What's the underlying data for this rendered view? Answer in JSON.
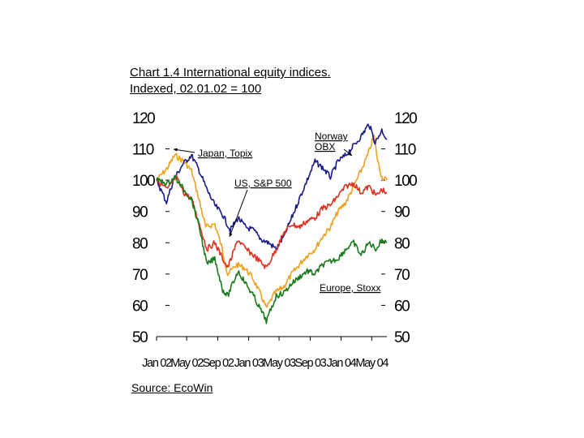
{
  "chart_data": {
    "type": "line",
    "title": "Chart 1.4 International equity indices.",
    "subtitle": "Indexed, 02.01.02 = 100",
    "ylim": [
      50,
      120
    ],
    "y_ticks": [
      "120",
      "110",
      "100",
      "90",
      "80",
      "70",
      "60",
      "50"
    ],
    "x_ticks": [
      "Jan 02",
      "May 02",
      "Sep 02",
      "Jan 03",
      "May 03",
      "Sep 03",
      "Jan 04",
      "May 04"
    ],
    "x_range": [
      "2002-01-02",
      "2004-06-30"
    ],
    "grid": false,
    "legend": "none (direct labels)",
    "annotations": [
      "Japan, Topix",
      "Norway OBX",
      "US, S&P 500",
      "Europe, Stoxx"
    ],
    "series": [
      {
        "name": "Norway OBX",
        "color": "#f0a020",
        "points": [
          [
            "2002-01-02",
            100
          ],
          [
            "2002-02-15",
            104
          ],
          [
            "2002-03-15",
            108
          ],
          [
            "2002-04-20",
            106
          ],
          [
            "2002-05-20",
            103
          ],
          [
            "2002-06-15",
            95
          ],
          [
            "2002-07-15",
            85
          ],
          [
            "2002-08-20",
            86
          ],
          [
            "2002-09-15",
            79
          ],
          [
            "2002-10-10",
            70
          ],
          [
            "2002-11-15",
            73
          ],
          [
            "2002-12-15",
            72
          ],
          [
            "2003-01-15",
            69
          ],
          [
            "2003-02-20",
            63
          ],
          [
            "2003-03-12",
            59
          ],
          [
            "2003-04-15",
            64
          ],
          [
            "2003-05-20",
            66
          ],
          [
            "2003-06-20",
            70
          ],
          [
            "2003-07-20",
            73
          ],
          [
            "2003-08-20",
            76
          ],
          [
            "2003-09-20",
            78
          ],
          [
            "2003-10-20",
            82
          ],
          [
            "2003-11-20",
            85
          ],
          [
            "2003-12-20",
            90
          ],
          [
            "2004-01-20",
            93
          ],
          [
            "2004-02-20",
            98
          ],
          [
            "2004-03-20",
            103
          ],
          [
            "2004-04-15",
            108
          ],
          [
            "2004-05-10",
            114
          ],
          [
            "2004-05-25",
            106
          ],
          [
            "2004-06-10",
            101
          ],
          [
            "2004-06-30",
            100
          ]
        ]
      },
      {
        "name": "Japan, Topix",
        "color": "#1a1a8c",
        "points": [
          [
            "2002-01-02",
            100
          ],
          [
            "2002-02-10",
            93
          ],
          [
            "2002-03-10",
            100
          ],
          [
            "2002-04-15",
            105
          ],
          [
            "2002-05-20",
            108
          ],
          [
            "2002-06-20",
            103
          ],
          [
            "2002-07-20",
            97
          ],
          [
            "2002-08-20",
            92
          ],
          [
            "2002-09-20",
            89
          ],
          [
            "2002-10-20",
            84
          ],
          [
            "2002-11-20",
            88
          ],
          [
            "2002-12-20",
            85
          ],
          [
            "2003-01-20",
            84
          ],
          [
            "2003-02-20",
            81
          ],
          [
            "2003-03-20",
            80
          ],
          [
            "2003-04-20",
            78
          ],
          [
            "2003-05-20",
            82
          ],
          [
            "2003-06-20",
            88
          ],
          [
            "2003-07-20",
            94
          ],
          [
            "2003-08-20",
            100
          ],
          [
            "2003-09-20",
            106
          ],
          [
            "2003-10-20",
            104
          ],
          [
            "2003-11-20",
            101
          ],
          [
            "2003-12-20",
            106
          ],
          [
            "2004-01-20",
            108
          ],
          [
            "2004-02-20",
            111
          ],
          [
            "2004-03-20",
            114
          ],
          [
            "2004-04-20",
            118
          ],
          [
            "2004-05-15",
            112
          ],
          [
            "2004-06-10",
            116
          ],
          [
            "2004-06-30",
            113
          ]
        ]
      },
      {
        "name": "US, S&P 500",
        "color": "#e03020",
        "points": [
          [
            "2002-01-02",
            100
          ],
          [
            "2002-02-15",
            97
          ],
          [
            "2002-03-20",
            101
          ],
          [
            "2002-04-20",
            96
          ],
          [
            "2002-05-20",
            94
          ],
          [
            "2002-06-20",
            86
          ],
          [
            "2002-07-20",
            78
          ],
          [
            "2002-08-20",
            80
          ],
          [
            "2002-09-20",
            75
          ],
          [
            "2002-10-10",
            72
          ],
          [
            "2002-11-20",
            81
          ],
          [
            "2002-12-20",
            78
          ],
          [
            "2003-01-20",
            76
          ],
          [
            "2003-03-12",
            72
          ],
          [
            "2003-04-20",
            78
          ],
          [
            "2003-05-20",
            83
          ],
          [
            "2003-06-20",
            86
          ],
          [
            "2003-07-20",
            85
          ],
          [
            "2003-08-20",
            87
          ],
          [
            "2003-09-20",
            88
          ],
          [
            "2003-10-20",
            91
          ],
          [
            "2003-11-20",
            92
          ],
          [
            "2003-12-20",
            95
          ],
          [
            "2004-01-20",
            98
          ],
          [
            "2004-02-20",
            99
          ],
          [
            "2004-03-20",
            96
          ],
          [
            "2004-04-20",
            98
          ],
          [
            "2004-05-20",
            95
          ],
          [
            "2004-06-10",
            97
          ],
          [
            "2004-06-30",
            96
          ]
        ]
      },
      {
        "name": "Europe, Stoxx",
        "color": "#1a7a1a",
        "points": [
          [
            "2002-01-02",
            100
          ],
          [
            "2002-02-15",
            99
          ],
          [
            "2002-03-15",
            101
          ],
          [
            "2002-04-20",
            97
          ],
          [
            "2002-05-20",
            94
          ],
          [
            "2002-06-20",
            85
          ],
          [
            "2002-07-20",
            73
          ],
          [
            "2002-08-20",
            75
          ],
          [
            "2002-09-20",
            65
          ],
          [
            "2002-10-10",
            63
          ],
          [
            "2002-11-20",
            71
          ],
          [
            "2002-12-20",
            67
          ],
          [
            "2003-01-20",
            63
          ],
          [
            "2003-03-12",
            55
          ],
          [
            "2003-04-20",
            63
          ],
          [
            "2003-05-20",
            64
          ],
          [
            "2003-06-20",
            67
          ],
          [
            "2003-07-20",
            69
          ],
          [
            "2003-08-20",
            71
          ],
          [
            "2003-09-20",
            70
          ],
          [
            "2003-10-20",
            73
          ],
          [
            "2003-11-20",
            74
          ],
          [
            "2003-12-20",
            75
          ],
          [
            "2004-01-20",
            78
          ],
          [
            "2004-02-20",
            80
          ],
          [
            "2004-03-20",
            76
          ],
          [
            "2004-04-20",
            80
          ],
          [
            "2004-05-20",
            78
          ],
          [
            "2004-06-10",
            81
          ],
          [
            "2004-06-30",
            80
          ]
        ]
      }
    ]
  },
  "source": "Source: EcoWin"
}
